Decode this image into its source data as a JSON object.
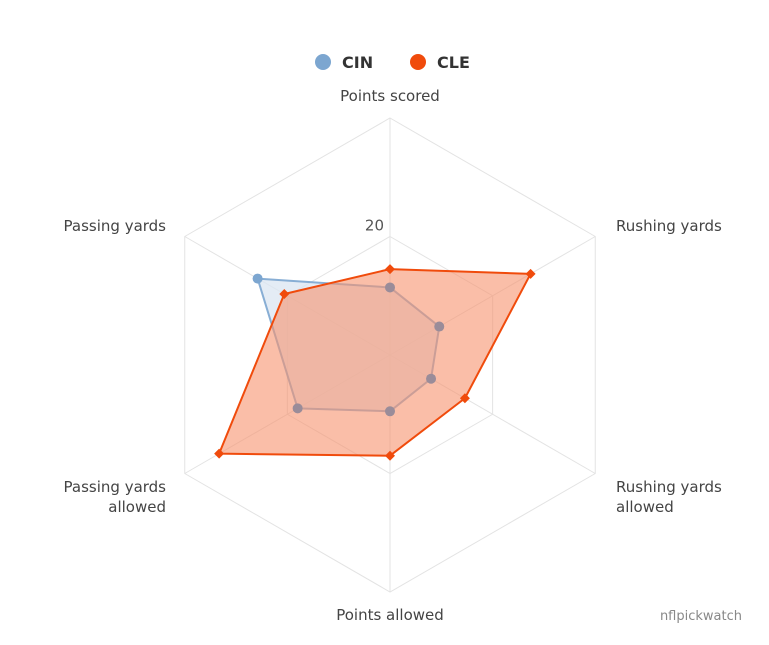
{
  "chart_data": {
    "type": "radar",
    "title": "",
    "axes": [
      "Points scored",
      "Rushing yards",
      "Rushing yards allowed",
      "Points allowed",
      "Passing yards allowed",
      "Passing yards"
    ],
    "axis_label_lines": [
      [
        "Points scored"
      ],
      [
        "Rushing yards"
      ],
      [
        "Rushing yards",
        "allowed"
      ],
      [
        "Points allowed"
      ],
      [
        "Passing yards",
        "allowed"
      ],
      [
        "Passing yards"
      ]
    ],
    "rmax": 40,
    "tick_labels": [
      "20"
    ],
    "tick_values": [
      20
    ],
    "series": [
      {
        "name": "CIN",
        "color": "#7ca6d0",
        "fill": "#dbe6f2",
        "marker": "circle",
        "values": [
          11.4,
          9.6,
          8.0,
          9.5,
          18.0,
          25.8
        ]
      },
      {
        "name": "CLE",
        "color": "#f04b0c",
        "fill": "#f7936e",
        "marker": "diamond",
        "values": [
          14.5,
          27.4,
          14.6,
          17.0,
          33.3,
          20.6
        ]
      }
    ],
    "legend": {
      "position": "top-center",
      "items": [
        "CIN",
        "CLE"
      ]
    }
  },
  "credit": "nflpickwatch"
}
